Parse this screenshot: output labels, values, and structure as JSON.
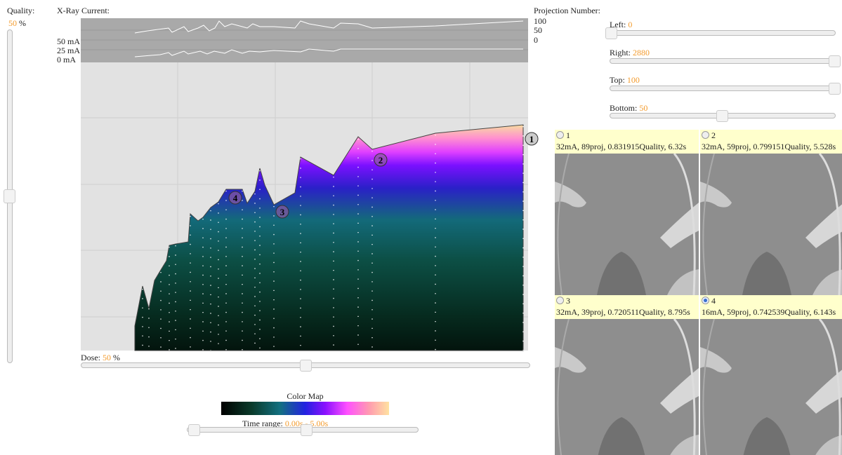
{
  "quality": {
    "label": "Quality:",
    "value": 50,
    "unit": "%"
  },
  "xray_current": {
    "title": "X-Ray Current:",
    "ticks": [
      "50 mA",
      "25 mA",
      "0 mA"
    ]
  },
  "projection_number": {
    "title": "Projection Number:",
    "ticks": [
      100,
      50,
      0
    ]
  },
  "markers": [
    1,
    2,
    3,
    4
  ],
  "dose": {
    "label": "Dose:",
    "value": 50,
    "unit": "%"
  },
  "color_map": {
    "title": "Color Map"
  },
  "time_range": {
    "label": "Time range:",
    "value": "0.00s - 5.00s"
  },
  "crop": [
    {
      "label": "Left:",
      "value": 0
    },
    {
      "label": "Right:",
      "value": 2880
    },
    {
      "label": "Top:",
      "value": 100
    },
    {
      "label": "Bottom:",
      "value": 50
    }
  ],
  "results": [
    {
      "id": 1,
      "info": "32mA, 89proj, 0.831915Quality, 6.32s"
    },
    {
      "id": 2,
      "info": "32mA, 59proj, 0.799151Quality, 5.528s"
    },
    {
      "id": 3,
      "info": "32mA, 39proj, 0.720511Quality, 8.795s"
    },
    {
      "id": 4,
      "info": "16mA, 59proj, 0.742539Quality, 6.143s"
    }
  ]
}
